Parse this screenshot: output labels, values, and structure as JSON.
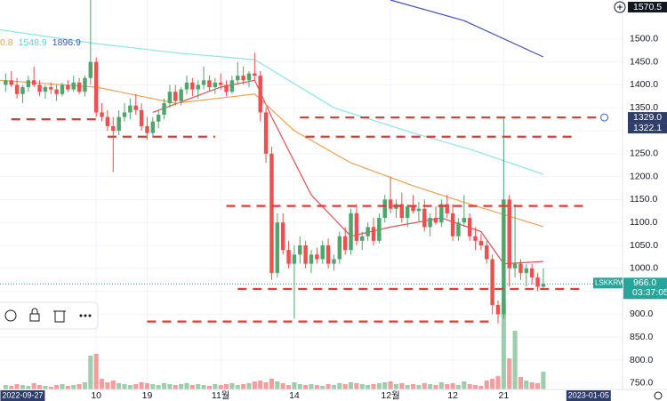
{
  "chart_data": {
    "type": "candlestick",
    "symbol": "LSKKRW",
    "countdown": "03:37:05",
    "xlim": [
      "2022-09-23",
      "2023-01-11"
    ],
    "ylim": [
      736,
      1585
    ],
    "grid": true,
    "up_color": "#4fa56c",
    "down_color": "#ef4f4f",
    "xticks": [
      {
        "value": "2022-10-10",
        "label": "10"
      },
      {
        "value": "2022-10-19",
        "label": "19"
      },
      {
        "value": "2022-11-01",
        "label": "11월"
      },
      {
        "value": "2022-11-14",
        "label": "14"
      },
      {
        "value": "2022-12-01",
        "label": "12월"
      },
      {
        "value": "2022-12-12",
        "label": "12"
      },
      {
        "value": "2022-12-21",
        "label": "21"
      }
    ],
    "yticks": [
      {
        "value": 750,
        "label": "750.0"
      },
      {
        "value": 800,
        "label": "800.0"
      },
      {
        "value": 850,
        "label": "850.0"
      },
      {
        "value": 900,
        "label": "900.0"
      },
      {
        "value": 950,
        "label": "950.0"
      },
      {
        "value": 1000,
        "label": "1000.0"
      },
      {
        "value": 1050,
        "label": "1050.0"
      },
      {
        "value": 1100,
        "label": "1100.0"
      },
      {
        "value": 1150,
        "label": "1150.0"
      },
      {
        "value": 1200,
        "label": "1200.0"
      },
      {
        "value": 1250,
        "label": "1250.0"
      },
      {
        "value": 1300,
        "label": "1300.0"
      },
      {
        "value": 1350,
        "label": "1350.0"
      },
      {
        "value": 1400,
        "label": "1400.0"
      },
      {
        "value": 1450,
        "label": "1450.0"
      },
      {
        "value": 1500,
        "label": "1500.0"
      }
    ],
    "crosshair_dates": [
      "2022-09-27",
      "2023-01-05"
    ],
    "price_labels": [
      {
        "value": 1570.5,
        "label": "1570.5",
        "color": "#131722"
      },
      {
        "value": 1329.0,
        "label": "1329.0",
        "color": "#2f3d6b"
      },
      {
        "value": 1322.1,
        "label": "1322.1",
        "color": "#2f3d6b"
      }
    ],
    "last_price": {
      "value": 966.0,
      "label": "966.0",
      "color": "#26a69a"
    },
    "legend_values": [
      {
        "label": "0.8",
        "color": "#f0a050"
      },
      {
        "label": "1548.9",
        "color": "#5fd0d0"
      },
      {
        "label": "1896.9",
        "color": "#3f51b5"
      }
    ],
    "ma_lines": [
      {
        "color": "#e05050",
        "x": [
          "2022-10-20",
          "2022-11-01",
          "2022-11-07",
          "2022-11-10",
          "2022-11-17",
          "2022-11-24",
          "2022-12-01",
          "2022-12-10",
          "2022-12-17",
          "2022-12-21",
          "2022-12-28"
        ],
        "values": [
          1340,
          1395,
          1410,
          1330,
          1160,
          1070,
          1090,
          1110,
          1080,
          1010,
          1015
        ]
      },
      {
        "color": "#f0a050",
        "x": [
          "2022-09-23",
          "2022-10-10",
          "2022-10-24",
          "2022-11-07",
          "2022-11-14",
          "2022-11-24",
          "2022-12-05",
          "2022-12-15",
          "2022-12-28"
        ],
        "values": [
          1410,
          1395,
          1360,
          1380,
          1300,
          1230,
          1180,
          1140,
          1091
        ]
      },
      {
        "color": "#8ee4e4",
        "x": [
          "2022-09-23",
          "2022-10-10",
          "2022-10-24",
          "2022-11-07",
          "2022-11-21",
          "2022-12-05",
          "2022-12-15",
          "2022-12-28"
        ],
        "values": [
          1520,
          1490,
          1470,
          1455,
          1350,
          1295,
          1260,
          1205
        ]
      },
      {
        "color": "#3f51b5",
        "x": [
          "2022-12-01",
          "2022-12-14",
          "2022-12-28"
        ],
        "values": [
          1585,
          1540,
          1461
        ]
      }
    ],
    "levels": [
      {
        "value": 1325,
        "from": "2022-09-25",
        "to": "2022-10-11",
        "endpoint": false
      },
      {
        "value": 1329,
        "from": "2022-11-15",
        "to": "2023-01-07",
        "endpoint": true
      },
      {
        "value": 1287,
        "from": "2022-10-12",
        "to": "2022-10-31",
        "endpoint": false
      },
      {
        "value": 1287,
        "from": "2022-11-16",
        "to": "2023-01-02",
        "endpoint": false
      },
      {
        "value": 1136,
        "from": "2022-11-02",
        "to": "2023-01-04",
        "endpoint": false
      },
      {
        "value": 955,
        "from": "2022-11-04",
        "to": "2023-01-04",
        "endpoint": false
      },
      {
        "value": 884,
        "from": "2022-10-19",
        "to": "2022-12-19",
        "endpoint": false
      }
    ],
    "vlim": [
      0,
      100
    ],
    "volume": [
      5,
      4,
      6,
      5,
      4,
      7,
      5,
      4,
      3,
      5,
      6,
      4,
      5,
      6,
      8,
      38,
      40,
      12,
      8,
      10,
      7,
      6,
      5,
      6,
      8,
      7,
      6,
      5,
      7,
      6,
      5,
      6,
      7,
      5,
      6,
      5,
      4,
      6,
      5,
      6,
      7,
      5,
      6,
      7,
      9,
      10,
      8,
      12,
      9,
      7,
      5,
      8,
      6,
      5,
      6,
      5,
      4,
      6,
      5,
      7,
      6,
      8,
      7,
      6,
      5,
      6,
      7,
      8,
      9,
      6,
      7,
      5,
      6,
      5,
      7,
      6,
      5,
      8,
      6,
      7,
      5,
      9,
      6,
      5,
      4,
      10,
      12,
      15,
      98,
      35,
      66,
      14,
      10,
      8,
      7,
      20
    ],
    "candles": [
      [
        "2022-09-24",
        1400,
        1425,
        1385,
        1410
      ],
      [
        "2022-09-25",
        1410,
        1430,
        1395,
        1400
      ],
      [
        "2022-09-26",
        1400,
        1415,
        1370,
        1380
      ],
      [
        "2022-09-27",
        1380,
        1400,
        1360,
        1395
      ],
      [
        "2022-09-28",
        1395,
        1420,
        1385,
        1410
      ],
      [
        "2022-09-29",
        1410,
        1440,
        1395,
        1400
      ],
      [
        "2022-09-30",
        1400,
        1410,
        1375,
        1385
      ],
      [
        "2022-10-01",
        1385,
        1400,
        1370,
        1395
      ],
      [
        "2022-10-02",
        1395,
        1405,
        1380,
        1390
      ],
      [
        "2022-10-03",
        1390,
        1400,
        1365,
        1380
      ],
      [
        "2022-10-04",
        1380,
        1405,
        1375,
        1400
      ],
      [
        "2022-10-05",
        1400,
        1410,
        1385,
        1390
      ],
      [
        "2022-10-06",
        1390,
        1420,
        1385,
        1405
      ],
      [
        "2022-10-07",
        1405,
        1415,
        1380,
        1385
      ],
      [
        "2022-10-08",
        1385,
        1420,
        1375,
        1415
      ],
      [
        "2022-10-09",
        1415,
        1585,
        1400,
        1450
      ],
      [
        "2022-10-10",
        1450,
        1460,
        1330,
        1340
      ],
      [
        "2022-10-11",
        1340,
        1360,
        1320,
        1330
      ],
      [
        "2022-10-12",
        1330,
        1345,
        1300,
        1310
      ],
      [
        "2022-10-13",
        1310,
        1330,
        1210,
        1300
      ],
      [
        "2022-10-14",
        1300,
        1345,
        1290,
        1330
      ],
      [
        "2022-10-15",
        1330,
        1360,
        1320,
        1340
      ],
      [
        "2022-10-16",
        1340,
        1370,
        1325,
        1355
      ],
      [
        "2022-10-17",
        1355,
        1380,
        1335,
        1345
      ],
      [
        "2022-10-18",
        1345,
        1360,
        1300,
        1310
      ],
      [
        "2022-10-19",
        1310,
        1330,
        1280,
        1295
      ],
      [
        "2022-10-20",
        1295,
        1330,
        1285,
        1320
      ],
      [
        "2022-10-21",
        1320,
        1345,
        1305,
        1335
      ],
      [
        "2022-10-22",
        1335,
        1370,
        1325,
        1360
      ],
      [
        "2022-10-23",
        1360,
        1400,
        1350,
        1385
      ],
      [
        "2022-10-24",
        1385,
        1400,
        1355,
        1365
      ],
      [
        "2022-10-25",
        1365,
        1395,
        1355,
        1390
      ],
      [
        "2022-10-26",
        1390,
        1420,
        1380,
        1405
      ],
      [
        "2022-10-27",
        1405,
        1415,
        1375,
        1390
      ],
      [
        "2022-10-28",
        1390,
        1410,
        1370,
        1400
      ],
      [
        "2022-10-29",
        1400,
        1440,
        1390,
        1410
      ],
      [
        "2022-10-30",
        1410,
        1420,
        1385,
        1395
      ],
      [
        "2022-10-31",
        1395,
        1415,
        1380,
        1405
      ],
      [
        "2022-11-01",
        1405,
        1425,
        1390,
        1400
      ],
      [
        "2022-11-02",
        1400,
        1410,
        1375,
        1385
      ],
      [
        "2022-11-03",
        1385,
        1420,
        1380,
        1410
      ],
      [
        "2022-11-04",
        1410,
        1450,
        1400,
        1420
      ],
      [
        "2022-11-05",
        1420,
        1440,
        1400,
        1410
      ],
      [
        "2022-11-06",
        1410,
        1430,
        1395,
        1425
      ],
      [
        "2022-11-07",
        1425,
        1470,
        1410,
        1420
      ],
      [
        "2022-11-08",
        1420,
        1430,
        1320,
        1340
      ],
      [
        "2022-11-09",
        1340,
        1350,
        1230,
        1250
      ],
      [
        "2022-11-10",
        1250,
        1265,
        975,
        990
      ],
      [
        "2022-11-11",
        990,
        1120,
        980,
        1100
      ],
      [
        "2022-11-12",
        1100,
        1120,
        1030,
        1040
      ],
      [
        "2022-11-13",
        1040,
        1060,
        1000,
        1010
      ],
      [
        "2022-11-14",
        1010,
        1050,
        890,
        1030
      ],
      [
        "2022-11-15",
        1030,
        1070,
        1010,
        1050
      ],
      [
        "2022-11-16",
        1050,
        1060,
        1000,
        1010
      ],
      [
        "2022-11-17",
        1010,
        1040,
        990,
        1030
      ],
      [
        "2022-11-18",
        1030,
        1045,
        1010,
        1020
      ],
      [
        "2022-11-19",
        1020,
        1060,
        1010,
        1050
      ],
      [
        "2022-11-20",
        1050,
        1065,
        1000,
        1010
      ],
      [
        "2022-11-21",
        1010,
        1030,
        995,
        1020
      ],
      [
        "2022-11-22",
        1020,
        1080,
        1010,
        1070
      ],
      [
        "2022-11-23",
        1070,
        1090,
        1030,
        1040
      ],
      [
        "2022-11-24",
        1040,
        1130,
        1030,
        1120
      ],
      [
        "2022-11-25",
        1120,
        1140,
        1050,
        1060
      ],
      [
        "2022-11-26",
        1060,
        1080,
        1040,
        1070
      ],
      [
        "2022-11-27",
        1070,
        1100,
        1060,
        1090
      ],
      [
        "2022-11-28",
        1090,
        1110,
        1050,
        1060
      ],
      [
        "2022-11-29",
        1060,
        1120,
        1055,
        1110
      ],
      [
        "2022-11-30",
        1110,
        1160,
        1100,
        1150
      ],
      [
        "2022-12-01",
        1150,
        1200,
        1120,
        1130
      ],
      [
        "2022-12-02",
        1130,
        1150,
        1110,
        1140
      ],
      [
        "2022-12-03",
        1140,
        1165,
        1100,
        1110
      ],
      [
        "2022-12-04",
        1110,
        1140,
        1090,
        1135
      ],
      [
        "2022-12-05",
        1135,
        1160,
        1120,
        1125
      ],
      [
        "2022-12-06",
        1125,
        1145,
        1100,
        1130
      ],
      [
        "2022-12-07",
        1130,
        1150,
        1080,
        1090
      ],
      [
        "2022-12-08",
        1090,
        1120,
        1070,
        1110
      ],
      [
        "2022-12-09",
        1110,
        1135,
        1095,
        1100
      ],
      [
        "2022-12-10",
        1100,
        1150,
        1090,
        1140
      ],
      [
        "2022-12-11",
        1140,
        1160,
        1110,
        1120
      ],
      [
        "2022-12-12",
        1120,
        1140,
        1060,
        1070
      ],
      [
        "2022-12-13",
        1070,
        1110,
        1060,
        1100
      ],
      [
        "2022-12-14",
        1100,
        1160,
        1090,
        1110
      ],
      [
        "2022-12-15",
        1110,
        1120,
        1060,
        1070
      ],
      [
        "2022-12-16",
        1070,
        1090,
        1040,
        1060
      ],
      [
        "2022-12-17",
        1060,
        1075,
        1040,
        1050
      ],
      [
        "2022-12-18",
        1050,
        1060,
        1010,
        1020
      ],
      [
        "2022-12-19",
        1020,
        1030,
        900,
        920
      ],
      [
        "2022-12-20",
        920,
        930,
        880,
        900
      ],
      [
        "2022-12-21",
        900,
        1330,
        890,
        1150
      ],
      [
        "2022-12-22",
        1150,
        1160,
        960,
        1000
      ],
      [
        "2022-12-23",
        1000,
        1140,
        980,
        1010
      ],
      [
        "2022-12-24",
        1010,
        1020,
        975,
        990
      ],
      [
        "2022-12-25",
        990,
        1010,
        960,
        1000
      ],
      [
        "2022-12-26",
        1000,
        1010,
        965,
        980
      ],
      [
        "2022-12-27",
        980,
        990,
        950,
        960
      ],
      [
        "2022-12-28",
        960,
        1000,
        955,
        966
      ]
    ]
  }
}
